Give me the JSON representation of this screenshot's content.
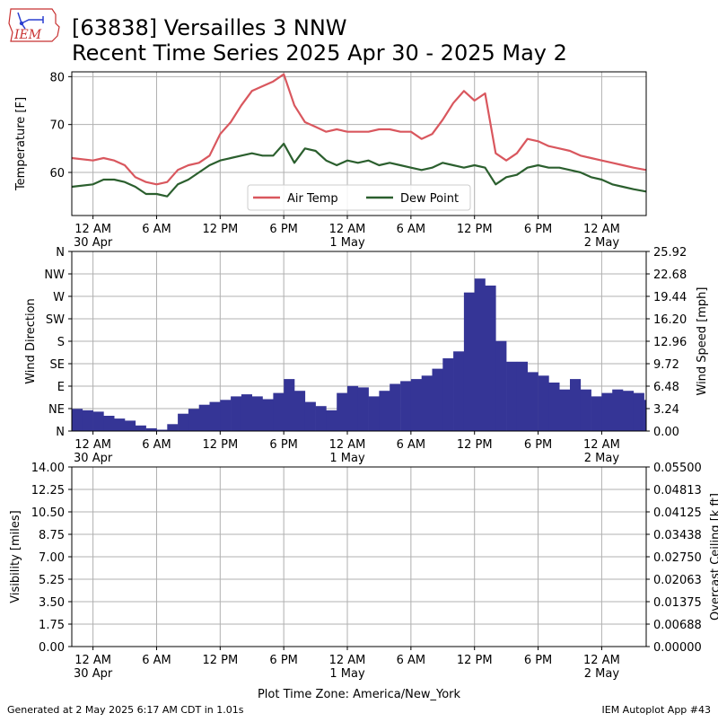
{
  "header": {
    "logo_text": "IEM",
    "title_line1": "[63838] Versailles 3 NNW",
    "title_line2": "Recent Time Series 2025 Apr 30 - 2025 May 2"
  },
  "footer": {
    "generated": "Generated at 2 May 2025 6:17 AM CDT in 1.01s",
    "app": "IEM Autoplot App #43",
    "timezone": "Plot Time Zone: America/New_York"
  },
  "colors": {
    "air_temp": "#d9575e",
    "dew_point": "#2b5f2e",
    "wind": "#353596",
    "ceiling_label": "#008000",
    "grid": "#b0b0b0"
  },
  "x_ticks": [
    {
      "h": 0,
      "label": "12 AM",
      "sub": "30 Apr"
    },
    {
      "h": 6,
      "label": "6 AM",
      "sub": ""
    },
    {
      "h": 12,
      "label": "12 PM",
      "sub": ""
    },
    {
      "h": 18,
      "label": "6 PM",
      "sub": ""
    },
    {
      "h": 24,
      "label": "12 AM",
      "sub": "1 May"
    },
    {
      "h": 30,
      "label": "6 AM",
      "sub": ""
    },
    {
      "h": 36,
      "label": "12 PM",
      "sub": ""
    },
    {
      "h": 42,
      "label": "6 PM",
      "sub": ""
    },
    {
      "h": 48,
      "label": "12 AM",
      "sub": "2 May"
    }
  ],
  "chart_data": [
    {
      "type": "line",
      "name": "temperature-panel",
      "ylabel": "Temperature [F]",
      "ylim": [
        51,
        81
      ],
      "yticks": [
        60,
        70,
        80
      ],
      "xlim_hours": [
        -2,
        52.2
      ],
      "legend_placement": "bottom-center",
      "grid": true,
      "series": [
        {
          "name": "Air Temp",
          "x": [
            -2,
            0,
            1,
            2,
            3,
            4,
            5,
            6,
            7,
            8,
            9,
            10,
            11,
            12,
            13,
            14,
            15,
            16,
            17,
            18,
            19,
            20,
            21,
            22,
            23,
            24,
            25,
            26,
            27,
            28,
            29,
            30,
            31,
            32,
            33,
            34,
            35,
            36,
            37,
            38,
            39,
            40,
            41,
            42,
            43,
            44,
            45,
            46,
            47,
            48,
            49,
            50,
            51,
            52.2
          ],
          "y": [
            63,
            62.5,
            63,
            62.5,
            61.5,
            59,
            58,
            57.5,
            58,
            60.5,
            61.5,
            62,
            63.5,
            68,
            70.5,
            74,
            77,
            78,
            79,
            80.5,
            74,
            70.5,
            69.5,
            68.5,
            69,
            68.5,
            68.5,
            68.5,
            69,
            69,
            68.5,
            68.5,
            67,
            68,
            71,
            74.5,
            77,
            75,
            76.5,
            64,
            62.5,
            64,
            67,
            66.5,
            65.5,
            65,
            64.5,
            63.5,
            63,
            62.5,
            62,
            61.5,
            61,
            60.5
          ]
        },
        {
          "name": "Dew Point",
          "x": [
            -2,
            0,
            1,
            2,
            3,
            4,
            5,
            6,
            7,
            8,
            9,
            10,
            11,
            12,
            13,
            14,
            15,
            16,
            17,
            18,
            19,
            20,
            21,
            22,
            23,
            24,
            25,
            26,
            27,
            28,
            29,
            30,
            31,
            32,
            33,
            34,
            35,
            36,
            37,
            38,
            39,
            40,
            41,
            42,
            43,
            44,
            45,
            46,
            47,
            48,
            49,
            50,
            51,
            52.2
          ],
          "y": [
            57,
            57.5,
            58.5,
            58.5,
            58,
            57,
            55.5,
            55.5,
            55,
            57.5,
            58.5,
            60,
            61.5,
            62.5,
            63,
            63.5,
            64,
            63.5,
            63.5,
            66,
            62,
            65,
            64.5,
            62.5,
            61.5,
            62.5,
            62,
            62.5,
            61.5,
            62,
            61.5,
            61,
            60.5,
            61,
            62,
            61.5,
            61,
            61.5,
            61,
            57.5,
            59,
            59.5,
            61,
            61.5,
            61,
            61,
            60.5,
            60,
            59,
            58.5,
            57.5,
            57,
            56.5,
            56
          ]
        }
      ]
    },
    {
      "type": "bar",
      "name": "wind-panel",
      "ylabel": "Wind Direction",
      "ylabel_right": "Wind Speed [mph]",
      "direction_ticks": [
        "N",
        "NE",
        "E",
        "SE",
        "S",
        "SW",
        "W",
        "NW",
        "N"
      ],
      "speed_ticks": [
        "0.00",
        "3.24",
        "6.48",
        "9.72",
        "12.96",
        "16.20",
        "19.44",
        "22.68",
        "25.92"
      ],
      "speed_ylim": [
        0,
        25.92
      ],
      "xlim_hours": [
        -2,
        52.2
      ],
      "grid": true,
      "series": [
        {
          "name": "Wind Speed",
          "x": [
            -2,
            -1,
            0,
            1,
            2,
            3,
            4,
            5,
            6,
            7,
            8,
            9,
            10,
            11,
            12,
            13,
            14,
            15,
            16,
            17,
            18,
            19,
            20,
            21,
            22,
            23,
            24,
            25,
            26,
            27,
            28,
            29,
            30,
            31,
            32,
            33,
            34,
            35,
            36,
            37,
            38,
            39,
            40,
            41,
            42,
            43,
            44,
            45,
            46,
            47,
            48,
            49,
            50,
            51,
            52
          ],
          "y": [
            3.2,
            3.0,
            2.8,
            2.2,
            1.8,
            1.5,
            0.8,
            0.4,
            0.2,
            1.0,
            2.5,
            3.2,
            3.8,
            4.2,
            4.5,
            5.0,
            5.3,
            5.0,
            4.6,
            5.5,
            7.5,
            5.8,
            4.2,
            3.6,
            3.0,
            5.5,
            6.5,
            6.3,
            5.0,
            5.8,
            6.8,
            7.2,
            7.5,
            8.0,
            9.0,
            10.5,
            11.5,
            20,
            22,
            21,
            13,
            10,
            10,
            8.5,
            8.0,
            7.0,
            6.0,
            7.5,
            6.0,
            5.0,
            5.5,
            6.0,
            5.8,
            5.5,
            4.5
          ]
        }
      ]
    },
    {
      "type": "line",
      "name": "visibility-panel",
      "ylabel": "Visibility [miles]",
      "ylabel_right": "Overcast Ceiling [k ft]",
      "visibility_ticks": [
        "0.00",
        "1.75",
        "3.50",
        "5.25",
        "7.00",
        "8.75",
        "10.50",
        "12.25",
        "14.00"
      ],
      "ceiling_ticks": [
        "0.00000",
        "0.00688",
        "0.01375",
        "0.02063",
        "0.02750",
        "0.03438",
        "0.04125",
        "0.04813",
        "0.05500"
      ],
      "ylim": [
        0,
        14
      ],
      "xlim_hours": [
        -2,
        52.2
      ],
      "grid": true,
      "series": []
    }
  ]
}
